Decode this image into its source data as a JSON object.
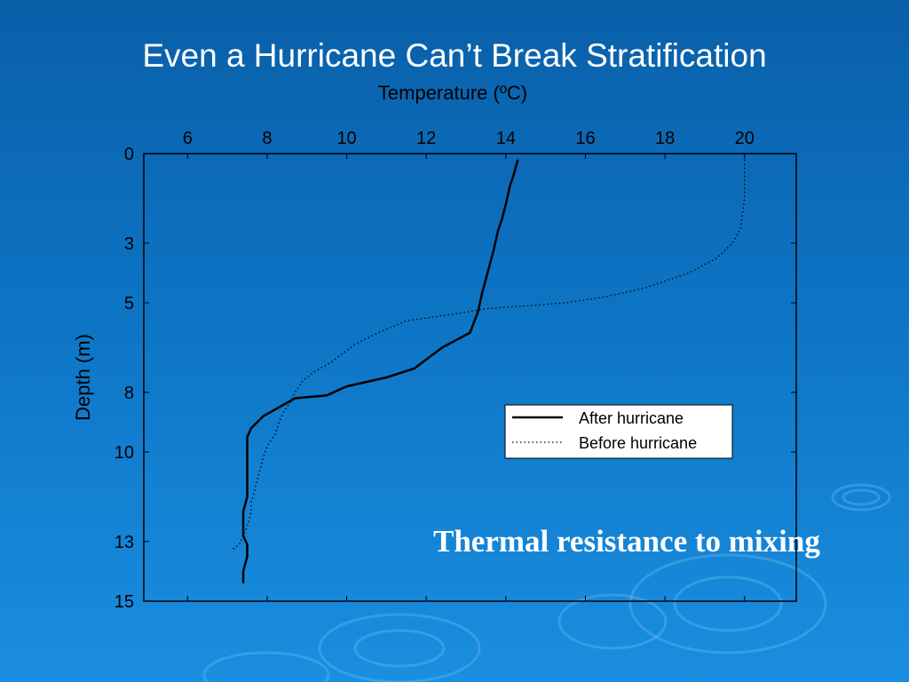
{
  "slide": {
    "title": "Even a Hurricane Can’t Break Stratification",
    "caption": "Thermal resistance to mixing"
  },
  "colors": {
    "background": "#0d74c4",
    "title": "#ffffff",
    "axes": "#000000"
  },
  "chart_data": {
    "type": "line",
    "xlabel": "Temperature (ºC)",
    "ylabel": "Depth (m)",
    "xlim": [
      4.9,
      21.3
    ],
    "ylim": [
      15,
      0
    ],
    "x_axis_position": "top",
    "x_ticks": [
      6,
      8,
      10,
      12,
      14,
      16,
      18,
      20
    ],
    "y_ticks": [
      0,
      3,
      5,
      8,
      10,
      13,
      15
    ],
    "grid": false,
    "legend_position": "lower-right",
    "series": [
      {
        "name": "After hurricane",
        "style": "solid",
        "x": [
          14.3,
          14.2,
          14.1,
          14.0,
          13.9,
          13.8,
          13.7,
          13.6,
          13.5,
          13.4,
          13.3,
          13.1,
          12.4,
          11.7,
          11.0,
          10.0,
          9.5,
          8.7,
          8.3,
          7.9,
          7.6,
          7.5,
          7.5,
          7.5,
          7.5,
          7.5,
          7.4,
          7.4,
          7.5,
          7.5,
          7.4,
          7.4
        ],
        "y": [
          0.2,
          0.7,
          1.1,
          1.7,
          2.2,
          2.6,
          3.2,
          3.7,
          4.2,
          4.7,
          5.3,
          6.0,
          6.5,
          7.2,
          7.5,
          7.8,
          8.1,
          8.2,
          8.5,
          8.8,
          9.2,
          9.5,
          9.9,
          10.5,
          11.0,
          11.5,
          12.0,
          12.8,
          13.1,
          13.5,
          14.0,
          14.4
        ]
      },
      {
        "name": "Before hurricane",
        "style": "dotted",
        "x": [
          20.0,
          20.0,
          20.0,
          19.9,
          19.7,
          19.3,
          18.6,
          17.5,
          16.5,
          15.5,
          14.5,
          13.5,
          12.6,
          11.5,
          10.8,
          10.2,
          9.6,
          9.2,
          8.9,
          8.7,
          8.6,
          8.4,
          8.3,
          8.2,
          8.0,
          7.9,
          7.8,
          7.7,
          7.6,
          7.6,
          7.5,
          7.4,
          7.3,
          7.1
        ],
        "y": [
          0.2,
          0.6,
          1.5,
          2.5,
          3.0,
          3.5,
          4.0,
          4.5,
          4.8,
          5.0,
          5.1,
          5.2,
          5.4,
          5.6,
          6.0,
          6.4,
          7.0,
          7.3,
          7.6,
          8.0,
          8.3,
          8.7,
          9.0,
          9.4,
          9.8,
          10.2,
          10.7,
          11.2,
          11.7,
          12.0,
          12.5,
          12.8,
          13.1,
          13.3
        ]
      }
    ]
  }
}
